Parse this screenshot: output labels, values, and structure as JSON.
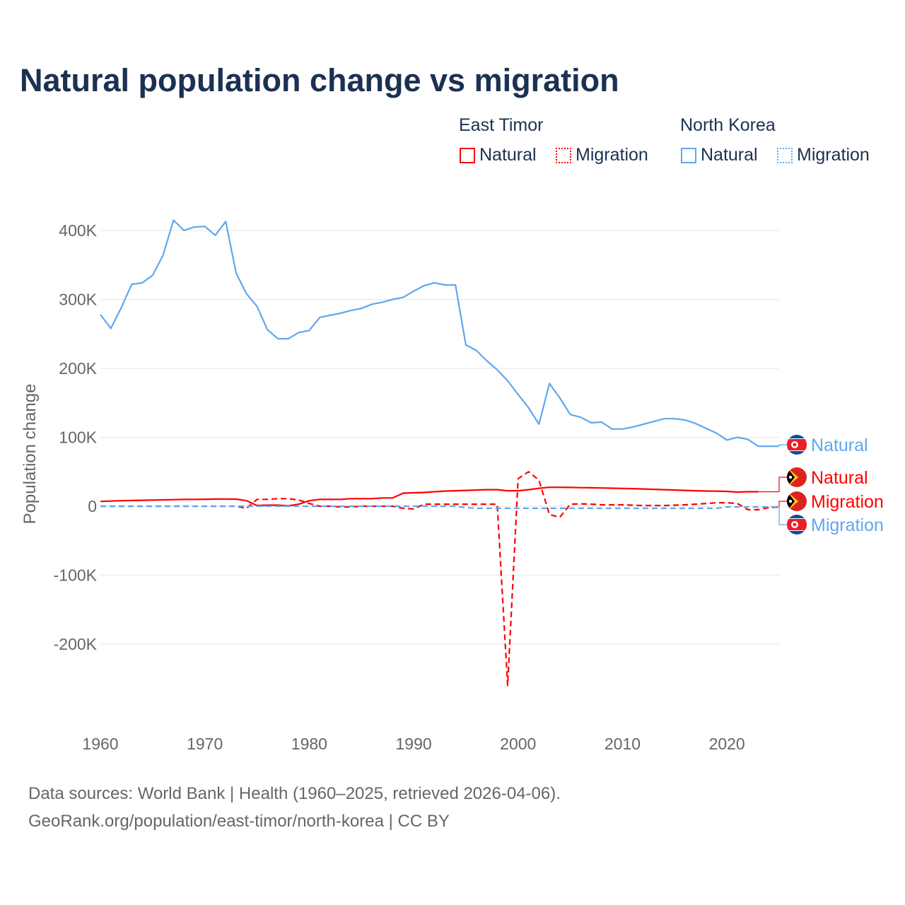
{
  "title": "Natural population change vs migration",
  "legend": {
    "groups": [
      {
        "name": "East Timor",
        "color": "#ff0000",
        "items": [
          "Natural",
          "Migration"
        ]
      },
      {
        "name": "North Korea",
        "color": "#5ea8ee",
        "items": [
          "Natural",
          "Migration"
        ]
      }
    ]
  },
  "footer": {
    "line1": "Data sources: World Bank | Health (1960–2025, retrieved 2026-04-06).",
    "line2": "GeoRank.org/population/east-timor/north-korea | CC BY"
  },
  "chart_data": {
    "type": "line",
    "title": "Natural population change vs migration",
    "xlabel": "",
    "ylabel": "Population change",
    "xlim": [
      1960,
      2025
    ],
    "ylim": [
      -300000,
      420000
    ],
    "x_ticks": [
      1960,
      1970,
      1980,
      1990,
      2000,
      2010,
      2020
    ],
    "y_ticks": [
      {
        "v": 400000,
        "label": "400K"
      },
      {
        "v": 300000,
        "label": "300K"
      },
      {
        "v": 200000,
        "label": "200K"
      },
      {
        "v": 100000,
        "label": "100K"
      },
      {
        "v": 0,
        "label": "0"
      },
      {
        "v": -100000,
        "label": "-100K"
      },
      {
        "v": -200000,
        "label": "-200K"
      }
    ],
    "grid": true,
    "x_start": 1960,
    "series": [
      {
        "name": "North Korea Natural",
        "label": "Natural",
        "color": "#5ea8ee",
        "dash": false,
        "flag": "north-korea",
        "values_k": [
          278,
          258,
          288,
          322,
          324,
          335,
          364,
          415,
          400,
          405,
          406,
          393,
          413,
          338,
          308,
          290,
          256,
          243,
          243,
          252,
          255,
          274,
          277,
          280,
          284,
          287,
          293,
          296,
          300,
          303,
          312,
          320,
          324,
          321,
          321,
          234,
          226,
          211,
          198,
          182,
          162,
          143,
          119,
          178,
          157,
          133,
          129,
          121,
          122,
          112,
          112,
          115,
          119,
          123,
          127,
          127,
          125,
          120,
          113,
          106,
          96,
          100,
          97,
          87,
          87,
          87
        ]
      },
      {
        "name": "East Timor Natural",
        "label": "Natural",
        "color": "#ff0000",
        "dash": false,
        "flag": "east-timor",
        "values_k": [
          7,
          7.5,
          8,
          8.3,
          8.6,
          8.9,
          9.2,
          9.5,
          9.8,
          10,
          10.2,
          10.4,
          10.5,
          10.3,
          8,
          1,
          1.5,
          1.5,
          0.5,
          3,
          8,
          10,
          10,
          10,
          11,
          11,
          11,
          12,
          12,
          19,
          19.5,
          20,
          21,
          22,
          22.5,
          23,
          23.5,
          24,
          24,
          22.5,
          22.5,
          24,
          26,
          27.5,
          27.5,
          27.3,
          27,
          26.8,
          26.5,
          26.2,
          25.8,
          25.5,
          25,
          24.5,
          24,
          23.5,
          23,
          22.5,
          22,
          21.8,
          21.5,
          20.5,
          21,
          21,
          null,
          null
        ]
      },
      {
        "name": "East Timor Migration",
        "label": "Migration",
        "color": "#ff0000",
        "dash": true,
        "flag": "east-timor",
        "values_k": [
          0,
          0,
          0,
          0,
          0,
          0,
          0,
          0,
          0,
          0,
          0,
          0,
          0,
          0,
          -3,
          10,
          10,
          11,
          11,
          9,
          4,
          0,
          0,
          -1,
          -1,
          0,
          0,
          0,
          0,
          -3,
          -4,
          3,
          3,
          3,
          3,
          3,
          3,
          3,
          3,
          -260,
          40,
          50,
          38,
          -12,
          -16,
          3,
          3.5,
          3,
          2,
          2,
          2,
          1.5,
          1,
          1,
          1,
          1.5,
          2,
          3,
          4,
          5,
          5,
          4,
          -5,
          -5,
          -2,
          -1
        ]
      },
      {
        "name": "North Korea Migration",
        "label": "Migration",
        "color": "#5ea8ee",
        "dash": true,
        "flag": "north-korea",
        "values_k": [
          0,
          0,
          0,
          0,
          0,
          0,
          0,
          0,
          0,
          0,
          0,
          0,
          0,
          0,
          0,
          0,
          0,
          0,
          0,
          0,
          0,
          0,
          0,
          0,
          0,
          0,
          0,
          0,
          0,
          0,
          0,
          0,
          0,
          0,
          0,
          -2,
          -3,
          -3,
          -3,
          -3,
          -3,
          -3,
          -3,
          -3,
          -3,
          -3,
          -3,
          -3,
          -3,
          -3,
          -3,
          -3,
          -3,
          -3,
          -3,
          -3,
          -3,
          -3,
          -3,
          -3,
          -1,
          -1,
          -1,
          -1,
          -1,
          -1
        ]
      }
    ]
  }
}
